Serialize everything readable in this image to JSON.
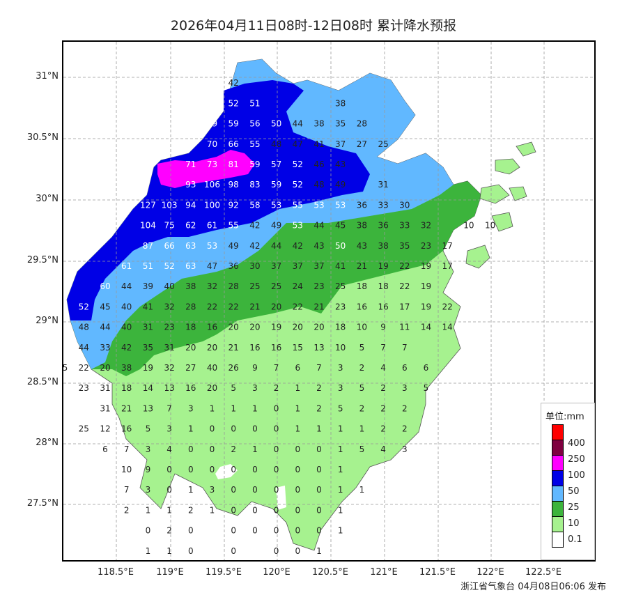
{
  "title": "2026年04月11日08时-12日08时 累计降水预报",
  "footer": "浙江省气象台 04月08日06:06 发布",
  "y_axis_labels": [
    "31°N",
    "30.5°N",
    "30°N",
    "29.5°N",
    "29°N",
    "28.5°N",
    "28°N",
    "27.5°N"
  ],
  "x_axis_labels": [
    "118.5°E",
    "119°E",
    "119.5°E",
    "120°E",
    "120.5°E",
    "121°E",
    "121.5°E",
    "122°E",
    "122.5°E"
  ],
  "legend": {
    "title": "单位:mm",
    "items": [
      {
        "label": "400",
        "color": "#ff0000"
      },
      {
        "label": "250",
        "color": "#7f0040"
      },
      {
        "label": "100",
        "color": "#ff00ff"
      },
      {
        "label": "50",
        "color": "#0000e6"
      },
      {
        "label": "25",
        "color": "#61b8ff"
      },
      {
        "label": "10",
        "color": "#3cb43c"
      },
      {
        "label": "0.1",
        "color": "#a6f28f"
      },
      {
        "label": "",
        "color": "#ffffff"
      }
    ]
  },
  "station_values": [
    {
      "v": 42,
      "r": 1,
      "c": 6
    },
    {
      "v": 52,
      "r": 2,
      "c": 5
    },
    {
      "v": 52,
      "r": 2,
      "c": 6
    },
    {
      "v": 51,
      "r": 2,
      "c": 7
    },
    {
      "v": 38,
      "r": 2,
      "c": 11
    },
    {
      "v": 59,
      "r": 3,
      "c": 5
    },
    {
      "v": 59,
      "r": 3,
      "c": 6
    },
    {
      "v": 56,
      "r": 3,
      "c": 7
    },
    {
      "v": 50,
      "r": 3,
      "c": 8
    },
    {
      "v": 44,
      "r": 3,
      "c": 9
    },
    {
      "v": 38,
      "r": 3,
      "c": 10
    },
    {
      "v": 35,
      "r": 3,
      "c": 11
    },
    {
      "v": 28,
      "r": 3,
      "c": 12
    },
    {
      "v": 70,
      "r": 4,
      "c": 5
    },
    {
      "v": 66,
      "r": 4,
      "c": 6
    },
    {
      "v": 55,
      "r": 4,
      "c": 7
    },
    {
      "v": 48,
      "r": 4,
      "c": 8
    },
    {
      "v": 47,
      "r": 4,
      "c": 9
    },
    {
      "v": 41,
      "r": 4,
      "c": 10
    },
    {
      "v": 37,
      "r": 4,
      "c": 11
    },
    {
      "v": 27,
      "r": 4,
      "c": 12
    },
    {
      "v": 25,
      "r": 4,
      "c": 13
    },
    {
      "v": 71,
      "r": 5,
      "c": 4
    },
    {
      "v": 73,
      "r": 5,
      "c": 5
    },
    {
      "v": 81,
      "r": 5,
      "c": 6
    },
    {
      "v": 59,
      "r": 5,
      "c": 7
    },
    {
      "v": 57,
      "r": 5,
      "c": 8
    },
    {
      "v": 52,
      "r": 5,
      "c": 9
    },
    {
      "v": 46,
      "r": 5,
      "c": 10
    },
    {
      "v": 43,
      "r": 5,
      "c": 11
    },
    {
      "v": 93,
      "r": 6,
      "c": 4
    },
    {
      "v": 106,
      "r": 6,
      "c": 5
    },
    {
      "v": 98,
      "r": 6,
      "c": 6
    },
    {
      "v": 83,
      "r": 6,
      "c": 7
    },
    {
      "v": 59,
      "r": 6,
      "c": 8
    },
    {
      "v": 52,
      "r": 6,
      "c": 9
    },
    {
      "v": 48,
      "r": 6,
      "c": 10
    },
    {
      "v": 49,
      "r": 6,
      "c": 11
    },
    {
      "v": 31,
      "r": 6,
      "c": 13
    },
    {
      "v": 127,
      "r": 7,
      "c": 2
    },
    {
      "v": 103,
      "r": 7,
      "c": 3
    },
    {
      "v": 94,
      "r": 7,
      "c": 4
    },
    {
      "v": 100,
      "r": 7,
      "c": 5
    },
    {
      "v": 92,
      "r": 7,
      "c": 6
    },
    {
      "v": 58,
      "r": 7,
      "c": 7
    },
    {
      "v": 53,
      "r": 7,
      "c": 8
    },
    {
      "v": 55,
      "r": 7,
      "c": 9
    },
    {
      "v": 53,
      "r": 7,
      "c": 10
    },
    {
      "v": 53,
      "r": 7,
      "c": 11
    },
    {
      "v": 36,
      "r": 7,
      "c": 12
    },
    {
      "v": 33,
      "r": 7,
      "c": 13
    },
    {
      "v": 30,
      "r": 7,
      "c": 14
    },
    {
      "v": 104,
      "r": 8,
      "c": 2
    },
    {
      "v": 75,
      "r": 8,
      "c": 3
    },
    {
      "v": 62,
      "r": 8,
      "c": 4
    },
    {
      "v": 61,
      "r": 8,
      "c": 5
    },
    {
      "v": 55,
      "r": 8,
      "c": 6
    },
    {
      "v": 42,
      "r": 8,
      "c": 7
    },
    {
      "v": 49,
      "r": 8,
      "c": 8
    },
    {
      "v": 53,
      "r": 8,
      "c": 9
    },
    {
      "v": 44,
      "r": 8,
      "c": 10
    },
    {
      "v": 45,
      "r": 8,
      "c": 11
    },
    {
      "v": 38,
      "r": 8,
      "c": 12
    },
    {
      "v": 36,
      "r": 8,
      "c": 13
    },
    {
      "v": 33,
      "r": 8,
      "c": 14
    },
    {
      "v": 32,
      "r": 8,
      "c": 15
    },
    {
      "v": 10,
      "r": 8,
      "c": 17
    },
    {
      "v": 10,
      "r": 8,
      "c": 18
    },
    {
      "v": 87,
      "r": 9,
      "c": 2
    },
    {
      "v": 66,
      "r": 9,
      "c": 3
    },
    {
      "v": 63,
      "r": 9,
      "c": 4
    },
    {
      "v": 53,
      "r": 9,
      "c": 5
    },
    {
      "v": 49,
      "r": 9,
      "c": 6
    },
    {
      "v": 42,
      "r": 9,
      "c": 7
    },
    {
      "v": 44,
      "r": 9,
      "c": 8
    },
    {
      "v": 42,
      "r": 9,
      "c": 9
    },
    {
      "v": 43,
      "r": 9,
      "c": 10
    },
    {
      "v": 50,
      "r": 9,
      "c": 11
    },
    {
      "v": 43,
      "r": 9,
      "c": 12
    },
    {
      "v": 38,
      "r": 9,
      "c": 13
    },
    {
      "v": 35,
      "r": 9,
      "c": 14
    },
    {
      "v": 23,
      "r": 9,
      "c": 15
    },
    {
      "v": 17,
      "r": 9,
      "c": 16
    },
    {
      "v": 61,
      "r": 10,
      "c": 1
    },
    {
      "v": 51,
      "r": 10,
      "c": 2
    },
    {
      "v": 52,
      "r": 10,
      "c": 3
    },
    {
      "v": 63,
      "r": 10,
      "c": 4
    },
    {
      "v": 47,
      "r": 10,
      "c": 5
    },
    {
      "v": 36,
      "r": 10,
      "c": 6
    },
    {
      "v": 30,
      "r": 10,
      "c": 7
    },
    {
      "v": 37,
      "r": 10,
      "c": 8
    },
    {
      "v": 37,
      "r": 10,
      "c": 9
    },
    {
      "v": 37,
      "r": 10,
      "c": 10
    },
    {
      "v": 41,
      "r": 10,
      "c": 11
    },
    {
      "v": 21,
      "r": 10,
      "c": 12
    },
    {
      "v": 19,
      "r": 10,
      "c": 13
    },
    {
      "v": 22,
      "r": 10,
      "c": 14
    },
    {
      "v": 19,
      "r": 10,
      "c": 15
    },
    {
      "v": 17,
      "r": 10,
      "c": 16
    },
    {
      "v": 60,
      "r": 11,
      "c": 0
    },
    {
      "v": 44,
      "r": 11,
      "c": 1
    },
    {
      "v": 39,
      "r": 11,
      "c": 2
    },
    {
      "v": 40,
      "r": 11,
      "c": 3
    },
    {
      "v": 38,
      "r": 11,
      "c": 4
    },
    {
      "v": 32,
      "r": 11,
      "c": 5
    },
    {
      "v": 28,
      "r": 11,
      "c": 6
    },
    {
      "v": 25,
      "r": 11,
      "c": 7
    },
    {
      "v": 25,
      "r": 11,
      "c": 8
    },
    {
      "v": 24,
      "r": 11,
      "c": 9
    },
    {
      "v": 23,
      "r": 11,
      "c": 10
    },
    {
      "v": 25,
      "r": 11,
      "c": 11
    },
    {
      "v": 18,
      "r": 11,
      "c": 12
    },
    {
      "v": 18,
      "r": 11,
      "c": 13
    },
    {
      "v": 22,
      "r": 11,
      "c": 14
    },
    {
      "v": 19,
      "r": 11,
      "c": 15
    },
    {
      "v": 52,
      "r": 12,
      "c": -1
    },
    {
      "v": 45,
      "r": 12,
      "c": 0
    },
    {
      "v": 40,
      "r": 12,
      "c": 1
    },
    {
      "v": 41,
      "r": 12,
      "c": 2
    },
    {
      "v": 32,
      "r": 12,
      "c": 3
    },
    {
      "v": 28,
      "r": 12,
      "c": 4
    },
    {
      "v": 22,
      "r": 12,
      "c": 5
    },
    {
      "v": 22,
      "r": 12,
      "c": 6
    },
    {
      "v": 21,
      "r": 12,
      "c": 7
    },
    {
      "v": 20,
      "r": 12,
      "c": 8
    },
    {
      "v": 22,
      "r": 12,
      "c": 9
    },
    {
      "v": 21,
      "r": 12,
      "c": 10
    },
    {
      "v": 23,
      "r": 12,
      "c": 11
    },
    {
      "v": 16,
      "r": 12,
      "c": 12
    },
    {
      "v": 16,
      "r": 12,
      "c": 13
    },
    {
      "v": 17,
      "r": 12,
      "c": 14
    },
    {
      "v": 19,
      "r": 12,
      "c": 15
    },
    {
      "v": 22,
      "r": 12,
      "c": 16
    },
    {
      "v": 60,
      "r": 13,
      "c": -2
    },
    {
      "v": 48,
      "r": 13,
      "c": -1
    },
    {
      "v": 44,
      "r": 13,
      "c": 0
    },
    {
      "v": 40,
      "r": 13,
      "c": 1
    },
    {
      "v": 31,
      "r": 13,
      "c": 2
    },
    {
      "v": 23,
      "r": 13,
      "c": 3
    },
    {
      "v": 18,
      "r": 13,
      "c": 4
    },
    {
      "v": 16,
      "r": 13,
      "c": 5
    },
    {
      "v": 20,
      "r": 13,
      "c": 6
    },
    {
      "v": 20,
      "r": 13,
      "c": 7
    },
    {
      "v": 19,
      "r": 13,
      "c": 8
    },
    {
      "v": 20,
      "r": 13,
      "c": 9
    },
    {
      "v": 20,
      "r": 13,
      "c": 10
    },
    {
      "v": 18,
      "r": 13,
      "c": 11
    },
    {
      "v": 10,
      "r": 13,
      "c": 12
    },
    {
      "v": 9,
      "r": 13,
      "c": 13
    },
    {
      "v": 11,
      "r": 13,
      "c": 14
    },
    {
      "v": 14,
      "r": 13,
      "c": 15
    },
    {
      "v": 14,
      "r": 13,
      "c": 16
    },
    {
      "v": 54,
      "r": 14,
      "c": -2
    },
    {
      "v": 44,
      "r": 14,
      "c": -1
    },
    {
      "v": 33,
      "r": 14,
      "c": 0
    },
    {
      "v": 42,
      "r": 14,
      "c": 1
    },
    {
      "v": 35,
      "r": 14,
      "c": 2
    },
    {
      "v": 31,
      "r": 14,
      "c": 3
    },
    {
      "v": 20,
      "r": 14,
      "c": 4
    },
    {
      "v": 20,
      "r": 14,
      "c": 5
    },
    {
      "v": 21,
      "r": 14,
      "c": 6
    },
    {
      "v": 16,
      "r": 14,
      "c": 7
    },
    {
      "v": 16,
      "r": 14,
      "c": 8
    },
    {
      "v": 15,
      "r": 14,
      "c": 9
    },
    {
      "v": 13,
      "r": 14,
      "c": 10
    },
    {
      "v": 10,
      "r": 14,
      "c": 11
    },
    {
      "v": 5,
      "r": 14,
      "c": 12
    },
    {
      "v": 7,
      "r": 14,
      "c": 13
    },
    {
      "v": 7,
      "r": 14,
      "c": 14
    },
    {
      "v": 35,
      "r": 15,
      "c": -2
    },
    {
      "v": 22,
      "r": 15,
      "c": -1
    },
    {
      "v": 20,
      "r": 15,
      "c": 0
    },
    {
      "v": 38,
      "r": 15,
      "c": 1
    },
    {
      "v": 19,
      "r": 15,
      "c": 2
    },
    {
      "v": 32,
      "r": 15,
      "c": 3
    },
    {
      "v": 27,
      "r": 15,
      "c": 4
    },
    {
      "v": 40,
      "r": 15,
      "c": 5
    },
    {
      "v": 26,
      "r": 15,
      "c": 6
    },
    {
      "v": 9,
      "r": 15,
      "c": 7
    },
    {
      "v": 7,
      "r": 15,
      "c": 8
    },
    {
      "v": 6,
      "r": 15,
      "c": 9
    },
    {
      "v": 7,
      "r": 15,
      "c": 10
    },
    {
      "v": 3,
      "r": 15,
      "c": 11
    },
    {
      "v": 2,
      "r": 15,
      "c": 12
    },
    {
      "v": 4,
      "r": 15,
      "c": 13
    },
    {
      "v": 6,
      "r": 15,
      "c": 14
    },
    {
      "v": 6,
      "r": 15,
      "c": 15
    },
    {
      "v": 23,
      "r": 16,
      "c": -1
    },
    {
      "v": 31,
      "r": 16,
      "c": 0
    },
    {
      "v": 18,
      "r": 16,
      "c": 1
    },
    {
      "v": 14,
      "r": 16,
      "c": 2
    },
    {
      "v": 13,
      "r": 16,
      "c": 3
    },
    {
      "v": 16,
      "r": 16,
      "c": 4
    },
    {
      "v": 20,
      "r": 16,
      "c": 5
    },
    {
      "v": 5,
      "r": 16,
      "c": 6
    },
    {
      "v": 3,
      "r": 16,
      "c": 7
    },
    {
      "v": 2,
      "r": 16,
      "c": 8
    },
    {
      "v": 1,
      "r": 16,
      "c": 9
    },
    {
      "v": 2,
      "r": 16,
      "c": 10
    },
    {
      "v": 3,
      "r": 16,
      "c": 11
    },
    {
      "v": 5,
      "r": 16,
      "c": 12
    },
    {
      "v": 2,
      "r": 16,
      "c": 13
    },
    {
      "v": 3,
      "r": 16,
      "c": 14
    },
    {
      "v": 5,
      "r": 16,
      "c": 15
    },
    {
      "v": 31,
      "r": 17,
      "c": 0
    },
    {
      "v": 21,
      "r": 17,
      "c": 1
    },
    {
      "v": 13,
      "r": 17,
      "c": 2
    },
    {
      "v": 7,
      "r": 17,
      "c": 3
    },
    {
      "v": 3,
      "r": 17,
      "c": 4
    },
    {
      "v": 1,
      "r": 17,
      "c": 5
    },
    {
      "v": 1,
      "r": 17,
      "c": 6
    },
    {
      "v": 1,
      "r": 17,
      "c": 7
    },
    {
      "v": 0,
      "r": 17,
      "c": 8
    },
    {
      "v": 1,
      "r": 17,
      "c": 9
    },
    {
      "v": 2,
      "r": 17,
      "c": 10
    },
    {
      "v": 5,
      "r": 17,
      "c": 11
    },
    {
      "v": 2,
      "r": 17,
      "c": 12
    },
    {
      "v": 2,
      "r": 17,
      "c": 13
    },
    {
      "v": 2,
      "r": 17,
      "c": 14
    },
    {
      "v": 25,
      "r": 18,
      "c": -1
    },
    {
      "v": 12,
      "r": 18,
      "c": 0
    },
    {
      "v": 16,
      "r": 18,
      "c": 1
    },
    {
      "v": 5,
      "r": 18,
      "c": 2
    },
    {
      "v": 3,
      "r": 18,
      "c": 3
    },
    {
      "v": 1,
      "r": 18,
      "c": 4
    },
    {
      "v": 0,
      "r": 18,
      "c": 5
    },
    {
      "v": 0,
      "r": 18,
      "c": 6
    },
    {
      "v": 0,
      "r": 18,
      "c": 7
    },
    {
      "v": 0,
      "r": 18,
      "c": 8
    },
    {
      "v": 1,
      "r": 18,
      "c": 9
    },
    {
      "v": 1,
      "r": 18,
      "c": 10
    },
    {
      "v": 1,
      "r": 18,
      "c": 11
    },
    {
      "v": 1,
      "r": 18,
      "c": 12
    },
    {
      "v": 2,
      "r": 18,
      "c": 13
    },
    {
      "v": 2,
      "r": 18,
      "c": 14
    },
    {
      "v": 6,
      "r": 19,
      "c": 0
    },
    {
      "v": 7,
      "r": 19,
      "c": 1
    },
    {
      "v": 3,
      "r": 19,
      "c": 2
    },
    {
      "v": 4,
      "r": 19,
      "c": 3
    },
    {
      "v": 0,
      "r": 19,
      "c": 4
    },
    {
      "v": 0,
      "r": 19,
      "c": 5
    },
    {
      "v": 2,
      "r": 19,
      "c": 6
    },
    {
      "v": 1,
      "r": 19,
      "c": 7
    },
    {
      "v": 0,
      "r": 19,
      "c": 8
    },
    {
      "v": 0,
      "r": 19,
      "c": 9
    },
    {
      "v": 0,
      "r": 19,
      "c": 10
    },
    {
      "v": 1,
      "r": 19,
      "c": 11
    },
    {
      "v": 5,
      "r": 19,
      "c": 12
    },
    {
      "v": 4,
      "r": 19,
      "c": 13
    },
    {
      "v": 3,
      "r": 19,
      "c": 14
    },
    {
      "v": 10,
      "r": 20,
      "c": 1
    },
    {
      "v": 9,
      "r": 20,
      "c": 2
    },
    {
      "v": 0,
      "r": 20,
      "c": 3
    },
    {
      "v": 0,
      "r": 20,
      "c": 4
    },
    {
      "v": 0,
      "r": 20,
      "c": 5
    },
    {
      "v": 0,
      "r": 20,
      "c": 6
    },
    {
      "v": 0,
      "r": 20,
      "c": 7
    },
    {
      "v": 0,
      "r": 20,
      "c": 8
    },
    {
      "v": 0,
      "r": 20,
      "c": 9
    },
    {
      "v": 0,
      "r": 20,
      "c": 10
    },
    {
      "v": 1,
      "r": 20,
      "c": 11
    },
    {
      "v": 7,
      "r": 21,
      "c": 1
    },
    {
      "v": 3,
      "r": 21,
      "c": 2
    },
    {
      "v": 0,
      "r": 21,
      "c": 3
    },
    {
      "v": 1,
      "r": 21,
      "c": 4
    },
    {
      "v": 3,
      "r": 21,
      "c": 5
    },
    {
      "v": 0,
      "r": 21,
      "c": 6
    },
    {
      "v": 0,
      "r": 21,
      "c": 7
    },
    {
      "v": 0,
      "r": 21,
      "c": 8
    },
    {
      "v": 0,
      "r": 21,
      "c": 9
    },
    {
      "v": 0,
      "r": 21,
      "c": 10
    },
    {
      "v": 1,
      "r": 21,
      "c": 11
    },
    {
      "v": 1,
      "r": 21,
      "c": 12
    },
    {
      "v": 2,
      "r": 22,
      "c": 1
    },
    {
      "v": 1,
      "r": 22,
      "c": 2
    },
    {
      "v": 1,
      "r": 22,
      "c": 3
    },
    {
      "v": 2,
      "r": 22,
      "c": 4
    },
    {
      "v": 1,
      "r": 22,
      "c": 5
    },
    {
      "v": 0,
      "r": 22,
      "c": 6
    },
    {
      "v": 0,
      "r": 22,
      "c": 7
    },
    {
      "v": 0,
      "r": 22,
      "c": 8
    },
    {
      "v": 0,
      "r": 22,
      "c": 9
    },
    {
      "v": 0,
      "r": 22,
      "c": 10
    },
    {
      "v": 1,
      "r": 22,
      "c": 11
    },
    {
      "v": 0,
      "r": 23,
      "c": 2
    },
    {
      "v": 2,
      "r": 23,
      "c": 3
    },
    {
      "v": 0,
      "r": 23,
      "c": 4
    },
    {
      "v": 0,
      "r": 23,
      "c": 6
    },
    {
      "v": 0,
      "r": 23,
      "c": 7
    },
    {
      "v": 0,
      "r": 23,
      "c": 8
    },
    {
      "v": 0,
      "r": 23,
      "c": 9
    },
    {
      "v": 0,
      "r": 23,
      "c": 10
    },
    {
      "v": 1,
      "r": 23,
      "c": 11
    },
    {
      "v": 1,
      "r": 24,
      "c": 2
    },
    {
      "v": 1,
      "r": 24,
      "c": 3
    },
    {
      "v": 0,
      "r": 24,
      "c": 4
    },
    {
      "v": 0,
      "r": 24,
      "c": 6
    },
    {
      "v": 0,
      "r": 24,
      "c": 8
    },
    {
      "v": 0,
      "r": 24,
      "c": 9
    },
    {
      "v": 1,
      "r": 24,
      "c": 10
    },
    {
      "v": 1,
      "r": 25,
      "c": 2
    },
    {
      "v": 0,
      "r": 25,
      "c": 3
    },
    {
      "v": 0,
      "r": 25,
      "c": 6
    },
    {
      "v": 0,
      "r": 25,
      "c": 9
    },
    {
      "v": 0,
      "r": 26,
      "c": 6
    },
    {
      "v": 0,
      "r": 26,
      "c": 9
    }
  ]
}
